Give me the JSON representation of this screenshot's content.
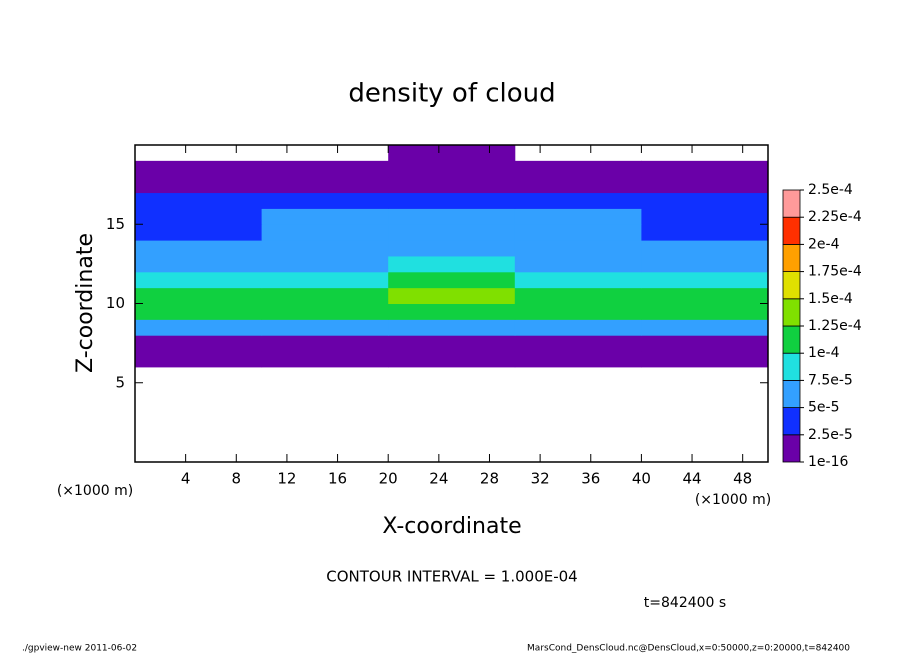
{
  "chart_data": {
    "type": "heatmap",
    "title": "density of cloud",
    "x_label": "X-coordinate",
    "y_label": "Z-coordinate",
    "x_unit": "(×1000 m)",
    "y_unit": "(×1000 m)",
    "annotation": "CONTOUR INTERVAL = 1.000E-04",
    "time_label": "t=842400 s",
    "footer_left": "./gpview-new  2011-06-02",
    "footer_right": "MarsCond_DensCloud.nc@DensCloud,x=0:50000,z=0:20000,t=842400",
    "xlim": [
      0,
      50
    ],
    "ylim": [
      0,
      20
    ],
    "xticks": [
      4,
      8,
      12,
      16,
      20,
      24,
      28,
      32,
      36,
      40,
      44,
      48
    ],
    "yticks": [
      5,
      10,
      15
    ],
    "x": [
      5,
      15,
      25,
      35,
      45
    ],
    "y": [
      0.5,
      1.5,
      2.5,
      3.5,
      4.5,
      5.5,
      6.5,
      7.5,
      8.5,
      9.5,
      10.5,
      11.5,
      12.5,
      13.5,
      14.5,
      15.5,
      16.5,
      17.5,
      18.5,
      19.5
    ],
    "values": [
      [
        null,
        null,
        null,
        null,
        null
      ],
      [
        null,
        null,
        null,
        null,
        null
      ],
      [
        null,
        null,
        null,
        null,
        null
      ],
      [
        null,
        null,
        null,
        null,
        null
      ],
      [
        null,
        null,
        null,
        null,
        null
      ],
      [
        null,
        null,
        null,
        null,
        null
      ],
      [
        1e-16,
        1e-16,
        1e-16,
        1e-16,
        1e-16
      ],
      [
        2e-05,
        2.2e-05,
        1.8e-05,
        2e-05,
        2.1e-05
      ],
      [
        6e-05,
        6.5e-05,
        6.2e-05,
        6.3e-05,
        6e-05
      ],
      [
        0.000102,
        0.000105,
        0.000108,
        0.000104,
        0.000101
      ],
      [
        0.00011,
        0.000115,
        0.00013,
        0.00012,
        0.00011
      ],
      [
        9e-05,
        9.5e-05,
        0.000105,
        9.8e-05,
        9.2e-05
      ],
      [
        6.5e-05,
        7e-05,
        7.8e-05,
        7.2e-05,
        6.8e-05
      ],
      [
        5.5e-05,
        6.2e-05,
        6.5e-05,
        6e-05,
        5.8e-05
      ],
      [
        4.5e-05,
        5.6e-05,
        5.8e-05,
        5.5e-05,
        4.8e-05
      ],
      [
        4.8e-05,
        5.2e-05,
        5.5e-05,
        5.2e-05,
        4.6e-05
      ],
      [
        3.5e-05,
        3.8e-05,
        4e-05,
        3.8e-05,
        3.6e-05
      ],
      [
        1.5e-05,
        1.6e-05,
        1.8e-05,
        1.6e-05,
        1.5e-05
      ],
      [
        1e-16,
        1e-16,
        1e-16,
        1e-16,
        1e-16
      ],
      [
        null,
        null,
        1e-16,
        null,
        null
      ]
    ],
    "colorbar": {
      "ticks": [
        {
          "value": 1e-16,
          "label": "1e-16"
        },
        {
          "value": 2.5e-05,
          "label": "2.5e-5"
        },
        {
          "value": 5e-05,
          "label": "5e-5"
        },
        {
          "value": 7.5e-05,
          "label": "7.5e-5"
        },
        {
          "value": 0.0001,
          "label": "1e-4"
        },
        {
          "value": 0.000125,
          "label": "1.25e-4"
        },
        {
          "value": 0.00015,
          "label": "1.5e-4"
        },
        {
          "value": 0.000175,
          "label": "1.75e-4"
        },
        {
          "value": 0.0002,
          "label": "2e-4"
        },
        {
          "value": 0.000225,
          "label": "2.25e-4"
        },
        {
          "value": 0.00025,
          "label": "2.5e-4"
        }
      ],
      "colors": [
        "#6a00a8",
        "#1030ff",
        "#33a0ff",
        "#20e0e0",
        "#10d040",
        "#80e000",
        "#e0e000",
        "#ffa000",
        "#ff3000",
        "#ff9a9a"
      ]
    }
  }
}
